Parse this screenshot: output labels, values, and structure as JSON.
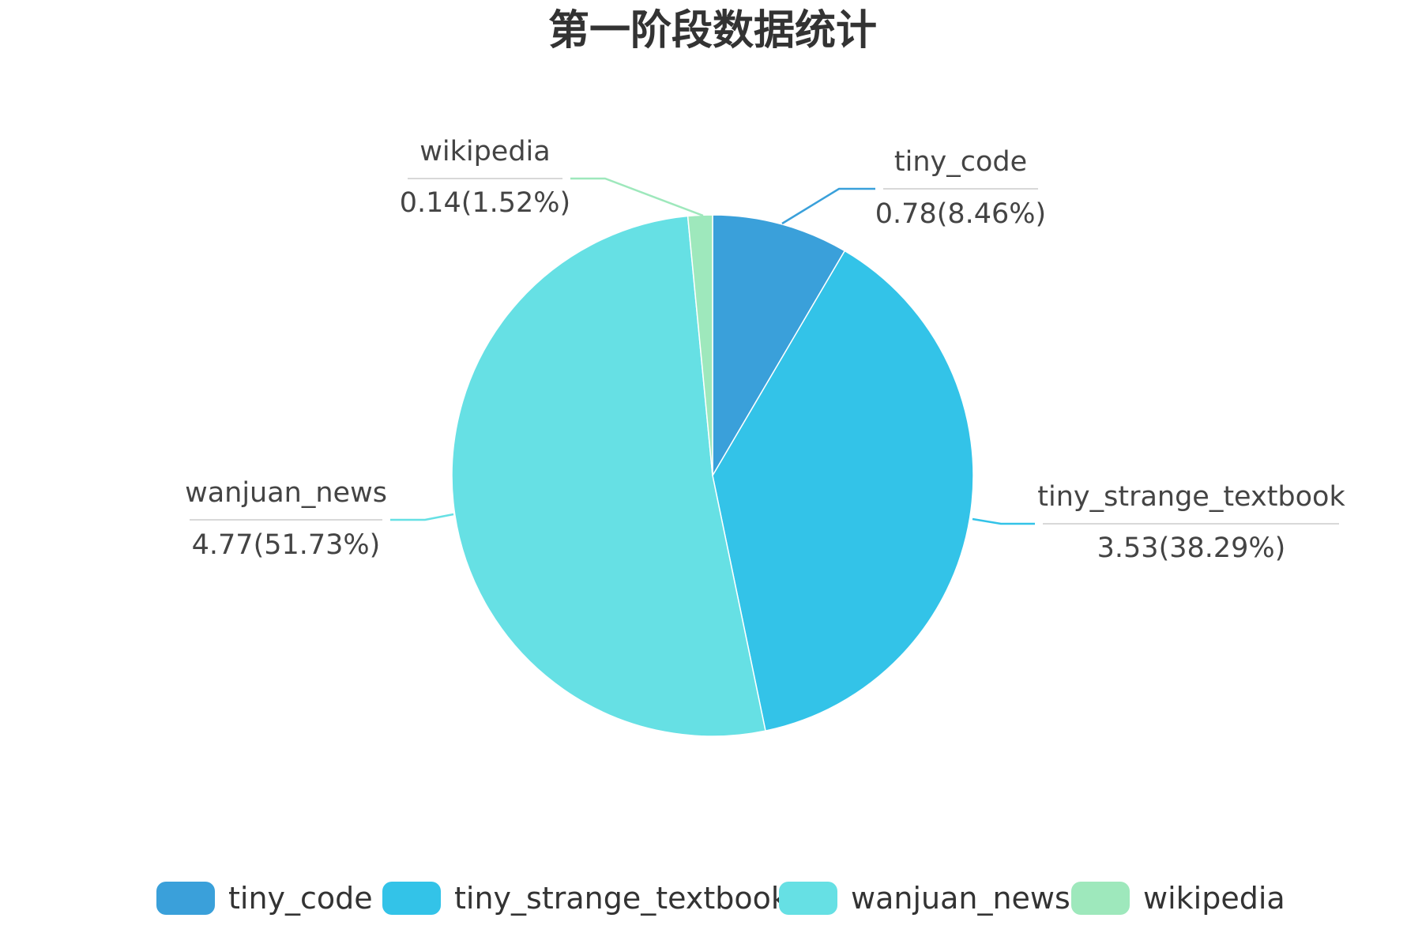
{
  "chart_data": {
    "type": "pie",
    "title": "第一阶段数据统计",
    "slices": [
      {
        "name": "tiny_code",
        "value": 0.78,
        "percent": "8.46%",
        "color": "#3aa0da"
      },
      {
        "name": "tiny_strange_textbook",
        "value": 3.53,
        "percent": "38.29%",
        "color": "#33c3e8"
      },
      {
        "name": "wanjuan_news",
        "value": 4.77,
        "percent": "51.73%",
        "color": "#66e0e4"
      },
      {
        "name": "wikipedia",
        "value": 0.14,
        "percent": "1.52%",
        "color": "#9ee8bc"
      }
    ],
    "start_angle_deg": 0,
    "direction": "clockwise",
    "legend": "bottom"
  }
}
